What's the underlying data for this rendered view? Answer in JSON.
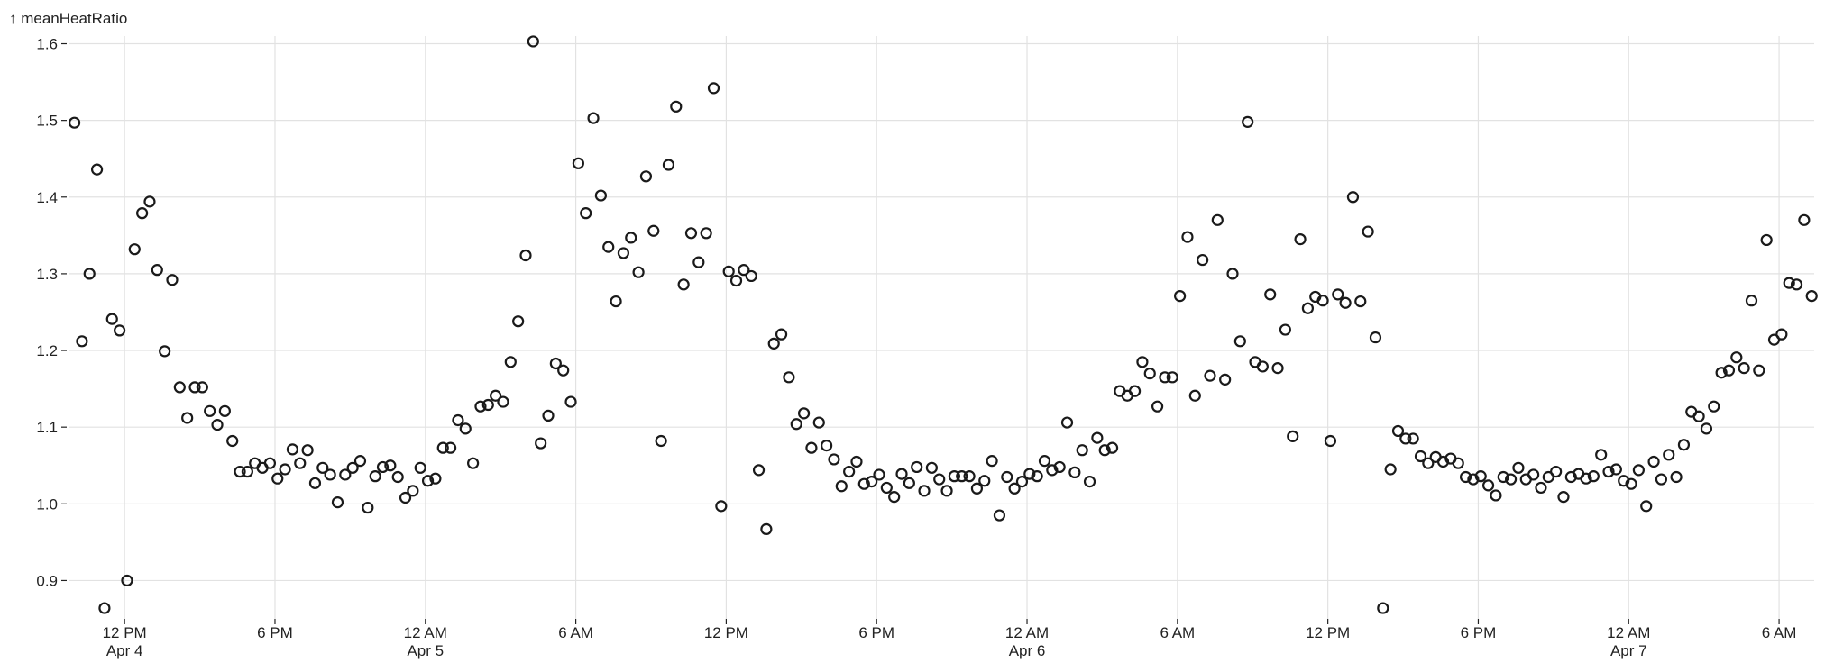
{
  "chart_data": {
    "type": "scatter",
    "y_label": "↑ meanHeatRatio",
    "color": "#1a1a1a",
    "grid": true,
    "xlim": [
      "Apr 4 09:48",
      "Apr 7 07:24"
    ],
    "xticks": [
      {
        "value": "Apr 4 12:00",
        "label": "12 PM\nApr 4"
      },
      {
        "value": "Apr 4 18:00",
        "label": "6 PM"
      },
      {
        "value": "Apr 5 00:00",
        "label": "12 AM\nApr 5"
      },
      {
        "value": "Apr 5 06:00",
        "label": "6 AM"
      },
      {
        "value": "Apr 5 12:00",
        "label": "12 PM"
      },
      {
        "value": "Apr 5 18:00",
        "label": "6 PM"
      },
      {
        "value": "Apr 6 00:00",
        "label": "12 AM\nApr 6"
      },
      {
        "value": "Apr 6 06:00",
        "label": "6 AM"
      },
      {
        "value": "Apr 6 12:00",
        "label": "12 PM"
      },
      {
        "value": "Apr 6 18:00",
        "label": "6 PM"
      },
      {
        "value": "Apr 7 00:00",
        "label": "12 AM\nApr 7"
      },
      {
        "value": "Apr 7 06:00",
        "label": "6 AM"
      }
    ],
    "ylim": [
      0.85,
      1.61
    ],
    "yticks": [
      0.9,
      {
        "value": 1,
        "label": "1.0"
      },
      1.1,
      1.2,
      1.3,
      1.4,
      1.5,
      1.6
    ],
    "x": [
      "Apr 4 10:00",
      "Apr 4 10:18",
      "Apr 4 10:36",
      "Apr 4 10:54",
      "Apr 4 11:12",
      "Apr 4 11:30",
      "Apr 4 11:48",
      "Apr 4 12:06",
      "Apr 4 12:24",
      "Apr 4 12:42",
      "Apr 4 13:00",
      "Apr 4 13:18",
      "Apr 4 13:36",
      "Apr 4 13:54",
      "Apr 4 14:12",
      "Apr 4 14:30",
      "Apr 4 14:48",
      "Apr 4 15:06",
      "Apr 4 15:24",
      "Apr 4 15:42",
      "Apr 4 16:00",
      "Apr 4 16:18",
      "Apr 4 16:36",
      "Apr 4 16:54",
      "Apr 4 17:12",
      "Apr 4 17:30",
      "Apr 4 17:48",
      "Apr 4 18:06",
      "Apr 4 18:24",
      "Apr 4 18:42",
      "Apr 4 19:00",
      "Apr 4 19:18",
      "Apr 4 19:36",
      "Apr 4 19:54",
      "Apr 4 20:12",
      "Apr 4 20:30",
      "Apr 4 20:48",
      "Apr 4 21:06",
      "Apr 4 21:24",
      "Apr 4 21:42",
      "Apr 4 22:00",
      "Apr 4 22:18",
      "Apr 4 22:36",
      "Apr 4 22:54",
      "Apr 4 23:12",
      "Apr 4 23:30",
      "Apr 4 23:48",
      "Apr 5 00:06",
      "Apr 5 00:24",
      "Apr 5 00:42",
      "Apr 5 01:00",
      "Apr 5 01:18",
      "Apr 5 01:36",
      "Apr 5 01:54",
      "Apr 5 02:12",
      "Apr 5 02:30",
      "Apr 5 02:48",
      "Apr 5 03:06",
      "Apr 5 03:24",
      "Apr 5 03:42",
      "Apr 5 04:00",
      "Apr 5 04:18",
      "Apr 5 04:36",
      "Apr 5 04:54",
      "Apr 5 05:12",
      "Apr 5 05:30",
      "Apr 5 05:48",
      "Apr 5 06:06",
      "Apr 5 06:24",
      "Apr 5 06:42",
      "Apr 5 07:00",
      "Apr 5 07:18",
      "Apr 5 07:36",
      "Apr 5 07:54",
      "Apr 5 08:12",
      "Apr 5 08:30",
      "Apr 5 08:48",
      "Apr 5 09:06",
      "Apr 5 09:24",
      "Apr 5 09:42",
      "Apr 5 10:00",
      "Apr 5 10:18",
      "Apr 5 10:36",
      "Apr 5 10:54",
      "Apr 5 11:12",
      "Apr 5 11:30",
      "Apr 5 11:48",
      "Apr 5 12:06",
      "Apr 5 12:24",
      "Apr 5 12:42",
      "Apr 5 13:00",
      "Apr 5 13:18",
      "Apr 5 13:36",
      "Apr 5 13:54",
      "Apr 5 14:12",
      "Apr 5 14:30",
      "Apr 5 14:48",
      "Apr 5 15:06",
      "Apr 5 15:24",
      "Apr 5 15:42",
      "Apr 5 16:00",
      "Apr 5 16:18",
      "Apr 5 16:36",
      "Apr 5 16:54",
      "Apr 5 17:12",
      "Apr 5 17:30",
      "Apr 5 17:48",
      "Apr 5 18:06",
      "Apr 5 18:24",
      "Apr 5 18:42",
      "Apr 5 19:00",
      "Apr 5 19:18",
      "Apr 5 19:36",
      "Apr 5 19:54",
      "Apr 5 20:12",
      "Apr 5 20:30",
      "Apr 5 20:48",
      "Apr 5 21:06",
      "Apr 5 21:24",
      "Apr 5 21:42",
      "Apr 5 22:00",
      "Apr 5 22:18",
      "Apr 5 22:36",
      "Apr 5 22:54",
      "Apr 5 23:12",
      "Apr 5 23:30",
      "Apr 5 23:48",
      "Apr 6 00:06",
      "Apr 6 00:24",
      "Apr 6 00:42",
      "Apr 6 01:00",
      "Apr 6 01:18",
      "Apr 6 01:36",
      "Apr 6 01:54",
      "Apr 6 02:12",
      "Apr 6 02:30",
      "Apr 6 02:48",
      "Apr 6 03:06",
      "Apr 6 03:24",
      "Apr 6 03:42",
      "Apr 6 04:00",
      "Apr 6 04:18",
      "Apr 6 04:36",
      "Apr 6 04:54",
      "Apr 6 05:12",
      "Apr 6 05:30",
      "Apr 6 05:48",
      "Apr 6 06:06",
      "Apr 6 06:24",
      "Apr 6 06:42",
      "Apr 6 07:00",
      "Apr 6 07:18",
      "Apr 6 07:36",
      "Apr 6 07:54",
      "Apr 6 08:12",
      "Apr 6 08:30",
      "Apr 6 08:48",
      "Apr 6 09:06",
      "Apr 6 09:24",
      "Apr 6 09:42",
      "Apr 6 10:00",
      "Apr 6 10:18",
      "Apr 6 10:36",
      "Apr 6 10:54",
      "Apr 6 11:12",
      "Apr 6 11:30",
      "Apr 6 11:48",
      "Apr 6 12:06",
      "Apr 6 12:24",
      "Apr 6 12:42",
      "Apr 6 13:00",
      "Apr 6 13:18",
      "Apr 6 13:36",
      "Apr 6 13:54",
      "Apr 6 14:12",
      "Apr 6 14:30",
      "Apr 6 14:48",
      "Apr 6 15:06",
      "Apr 6 15:24",
      "Apr 6 15:42",
      "Apr 6 16:00",
      "Apr 6 16:18",
      "Apr 6 16:36",
      "Apr 6 16:54",
      "Apr 6 17:12",
      "Apr 6 17:30",
      "Apr 6 17:48",
      "Apr 6 18:06",
      "Apr 6 18:24",
      "Apr 6 18:42",
      "Apr 6 19:00",
      "Apr 6 19:18",
      "Apr 6 19:36",
      "Apr 6 19:54",
      "Apr 6 20:12",
      "Apr 6 20:30",
      "Apr 6 20:48",
      "Apr 6 21:06",
      "Apr 6 21:24",
      "Apr 6 21:42",
      "Apr 6 22:00",
      "Apr 6 22:18",
      "Apr 6 22:36",
      "Apr 6 22:54",
      "Apr 6 23:12",
      "Apr 6 23:30",
      "Apr 6 23:48",
      "Apr 7 00:06",
      "Apr 7 00:24",
      "Apr 7 00:42",
      "Apr 7 01:00",
      "Apr 7 01:18",
      "Apr 7 01:36",
      "Apr 7 01:54",
      "Apr 7 02:12",
      "Apr 7 02:30",
      "Apr 7 02:48",
      "Apr 7 03:06",
      "Apr 7 03:24",
      "Apr 7 03:42",
      "Apr 7 04:00",
      "Apr 7 04:18",
      "Apr 7 04:36",
      "Apr 7 04:54",
      "Apr 7 05:12",
      "Apr 7 05:30",
      "Apr 7 05:48",
      "Apr 7 06:06",
      "Apr 7 06:24",
      "Apr 7 06:42",
      "Apr 7 07:00",
      "Apr 7 07:18"
    ],
    "values": [
      1.497,
      1.212,
      1.3,
      1.436,
      0.864,
      1.241,
      1.226,
      0.9,
      1.332,
      1.379,
      1.394,
      1.305,
      1.199,
      1.292,
      1.152,
      1.112,
      1.152,
      1.152,
      1.121,
      1.103,
      1.121,
      1.082,
      1.042,
      1.042,
      1.053,
      1.047,
      1.053,
      1.033,
      1.045,
      1.071,
      1.053,
      1.07,
      1.027,
      1.047,
      1.038,
      1.002,
      1.038,
      1.047,
      1.056,
      0.995,
      1.036,
      1.048,
      1.05,
      1.035,
      1.008,
      1.017,
      1.047,
      1.03,
      1.033,
      1.073,
      1.073,
      1.109,
      1.098,
      1.053,
      1.127,
      1.129,
      1.141,
      1.133,
      1.185,
      1.238,
      1.324,
      1.603,
      1.079,
      1.115,
      1.183,
      1.174,
      1.133,
      1.444,
      1.379,
      1.503,
      1.402,
      1.335,
      1.264,
      1.327,
      1.347,
      1.302,
      1.427,
      1.356,
      1.082,
      1.442,
      1.518,
      1.286,
      1.353,
      1.315,
      1.353,
      1.542,
      0.997,
      1.303,
      1.291,
      1.305,
      1.297,
      1.044,
      0.967,
      1.209,
      1.221,
      1.165,
      1.104,
      1.118,
      1.073,
      1.106,
      1.076,
      1.058,
      1.023,
      1.042,
      1.055,
      1.026,
      1.029,
      1.038,
      1.021,
      1.009,
      1.039,
      1.027,
      1.048,
      1.017,
      1.047,
      1.032,
      1.017,
      1.036,
      1.036,
      1.036,
      1.02,
      1.03,
      1.056,
      0.985,
      1.035,
      1.02,
      1.029,
      1.039,
      1.036,
      1.056,
      1.044,
      1.048,
      1.106,
      1.041,
      1.07,
      1.029,
      1.086,
      1.07,
      1.073,
      1.147,
      1.141,
      1.147,
      1.185,
      1.17,
      1.127,
      1.165,
      1.165,
      1.271,
      1.348,
      1.141,
      1.318,
      1.167,
      1.37,
      1.162,
      1.3,
      1.212,
      1.498,
      1.185,
      1.179,
      1.273,
      1.177,
      1.227,
      1.088,
      1.345,
      1.255,
      1.27,
      1.265,
      1.082,
      1.273,
      1.262,
      1.4,
      1.264,
      1.355,
      1.217,
      0.864,
      1.045,
      1.095,
      1.085,
      1.085,
      1.062,
      1.053,
      1.061,
      1.055,
      1.059,
      1.053,
      1.035,
      1.032,
      1.036,
      1.024,
      1.011,
      1.035,
      1.032,
      1.047,
      1.032,
      1.038,
      1.021,
      1.035,
      1.042,
      1.009,
      1.035,
      1.039,
      1.033,
      1.036,
      1.064,
      1.042,
      1.045,
      1.03,
      1.026,
      1.044,
      0.997,
      1.055,
      1.032,
      1.064,
      1.035,
      1.077,
      1.12,
      1.114,
      1.098,
      1.127,
      1.171,
      1.174,
      1.191,
      1.177,
      1.265,
      1.174,
      1.344,
      1.214,
      1.221,
      1.288,
      1.286,
      1.37,
      1.271
    ]
  }
}
